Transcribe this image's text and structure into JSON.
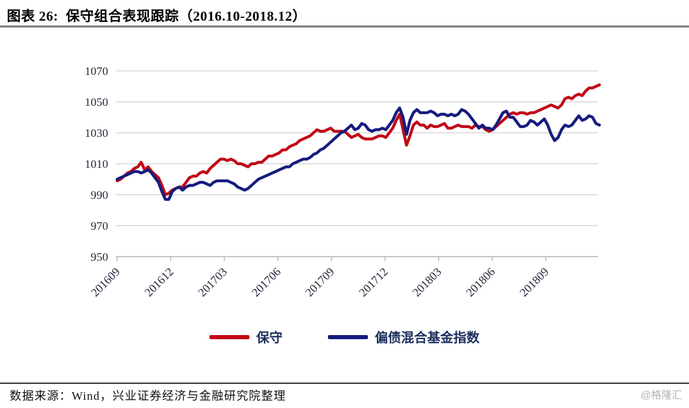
{
  "header": {
    "title": "图表 26:  保守组合表现跟踪（2016.10-2018.12）"
  },
  "footer": {
    "source": "数据来源：Wind，兴业证券经济与金融研究院整理",
    "watermark": "@格隆汇"
  },
  "chart_data": {
    "type": "line",
    "title": "保守组合表现跟踪（2016.10-2018.12）",
    "x_axis": {
      "tick_labels": [
        "201609",
        "201612",
        "201703",
        "201706",
        "201709",
        "201712",
        "201803",
        "201806",
        "201809"
      ],
      "tick_month_offsets": [
        0,
        3,
        6,
        9,
        12,
        15,
        18,
        21,
        24
      ],
      "total_months": 27,
      "label_rotation_deg": -45
    },
    "y_axis": {
      "min": 950,
      "max": 1070,
      "step": 20,
      "ticks": [
        950,
        970,
        990,
        1010,
        1030,
        1050,
        1070
      ]
    },
    "grid": "horizontal",
    "legend_position": "bottom",
    "colors": {
      "grid": "#D9D9D9",
      "axis": "#B8B8B8",
      "axis_text": "#26263A"
    },
    "sampling_note": "values evenly spaced from 2016-09 to 2018-12 (141 points)",
    "series": [
      {
        "name": "保守",
        "color": "#C10A16",
        "values": [
          999,
          1000,
          1002,
          1004,
          1005,
          1007,
          1008,
          1011,
          1006,
          1008,
          1005,
          1003,
          1001,
          996,
          990,
          991,
          993,
          994,
          995,
          995,
          998,
          1001,
          1002,
          1002,
          1004,
          1005,
          1004,
          1007,
          1009,
          1011,
          1013,
          1013,
          1012,
          1013,
          1012,
          1010,
          1010,
          1009,
          1008,
          1010,
          1010,
          1011,
          1011,
          1013,
          1015,
          1015,
          1016,
          1017,
          1019,
          1019,
          1021,
          1022,
          1023,
          1025,
          1026,
          1027,
          1028,
          1030,
          1032,
          1031,
          1031,
          1032,
          1033,
          1031,
          1031,
          1031,
          1031,
          1029,
          1027,
          1028,
          1029,
          1027,
          1026,
          1026,
          1026,
          1027,
          1028,
          1028,
          1027,
          1030,
          1033,
          1038,
          1042,
          1032,
          1022,
          1028,
          1035,
          1037,
          1035,
          1035,
          1033,
          1035,
          1034,
          1034,
          1035,
          1036,
          1033,
          1033,
          1034,
          1035,
          1034,
          1034,
          1034,
          1033,
          1035,
          1034,
          1034,
          1032,
          1031,
          1032,
          1034,
          1036,
          1038,
          1040,
          1042,
          1043,
          1042,
          1043,
          1043,
          1042,
          1043,
          1043,
          1044,
          1045,
          1046,
          1047,
          1048,
          1047,
          1046,
          1048,
          1052,
          1053,
          1052,
          1054,
          1055,
          1054,
          1057,
          1059,
          1059,
          1060,
          1061
        ]
      },
      {
        "name": "偏债混合基金指数",
        "color": "#151B7E",
        "values": [
          1000,
          1001,
          1002,
          1003,
          1004,
          1005,
          1005,
          1004,
          1005,
          1006,
          1004,
          1001,
          998,
          992,
          987,
          987,
          992,
          994,
          995,
          993,
          995,
          996,
          996,
          997,
          998,
          998,
          997,
          996,
          998,
          999,
          999,
          999,
          999,
          998,
          997,
          995,
          994,
          993,
          994,
          996,
          998,
          1000,
          1001,
          1002,
          1003,
          1004,
          1005,
          1006,
          1007,
          1008,
          1008,
          1010,
          1011,
          1012,
          1013,
          1013,
          1014,
          1016,
          1017,
          1019,
          1020,
          1022,
          1024,
          1026,
          1028,
          1030,
          1031,
          1033,
          1035,
          1032,
          1033,
          1036,
          1035,
          1032,
          1031,
          1032,
          1032,
          1033,
          1032,
          1035,
          1038,
          1043,
          1046,
          1040,
          1029,
          1038,
          1043,
          1045,
          1043,
          1043,
          1043,
          1044,
          1043,
          1041,
          1042,
          1042,
          1041,
          1042,
          1041,
          1042,
          1045,
          1044,
          1042,
          1039,
          1036,
          1033,
          1035,
          1033,
          1033,
          1032,
          1035,
          1039,
          1043,
          1044,
          1040,
          1040,
          1037,
          1034,
          1034,
          1035,
          1038,
          1037,
          1035,
          1037,
          1039,
          1035,
          1029,
          1025,
          1027,
          1032,
          1035,
          1034,
          1035,
          1038,
          1041,
          1038,
          1039,
          1041,
          1040,
          1036,
          1035
        ]
      }
    ]
  }
}
